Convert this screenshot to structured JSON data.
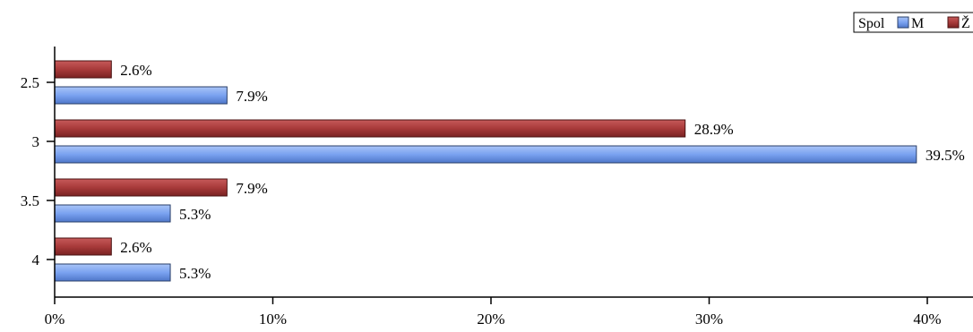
{
  "chart_data": {
    "type": "bar",
    "orientation": "horizontal",
    "categories": [
      "2.5",
      "3",
      "3.5",
      "4"
    ],
    "series": [
      {
        "name": "M",
        "values": [
          7.9,
          39.5,
          5.3,
          5.3
        ],
        "labels": [
          "7.9%",
          "39.5%",
          "5.3%",
          "5.3%"
        ]
      },
      {
        "name": "Ž",
        "values": [
          2.6,
          28.9,
          7.9,
          2.6
        ],
        "labels": [
          "2.6%",
          "28.9%",
          "7.9%",
          "2.6%"
        ]
      }
    ],
    "xlim": [
      0,
      42
    ],
    "x_ticks": [
      0,
      10,
      20,
      30,
      40
    ],
    "x_tick_labels": [
      "0%",
      "10%",
      "20%",
      "30%",
      "40%"
    ],
    "legend": {
      "title": "Spol",
      "placement": "top-right"
    },
    "grid": false
  },
  "colors": {
    "M": "#7aa2f0",
    "Ž": "#a83a3a"
  }
}
